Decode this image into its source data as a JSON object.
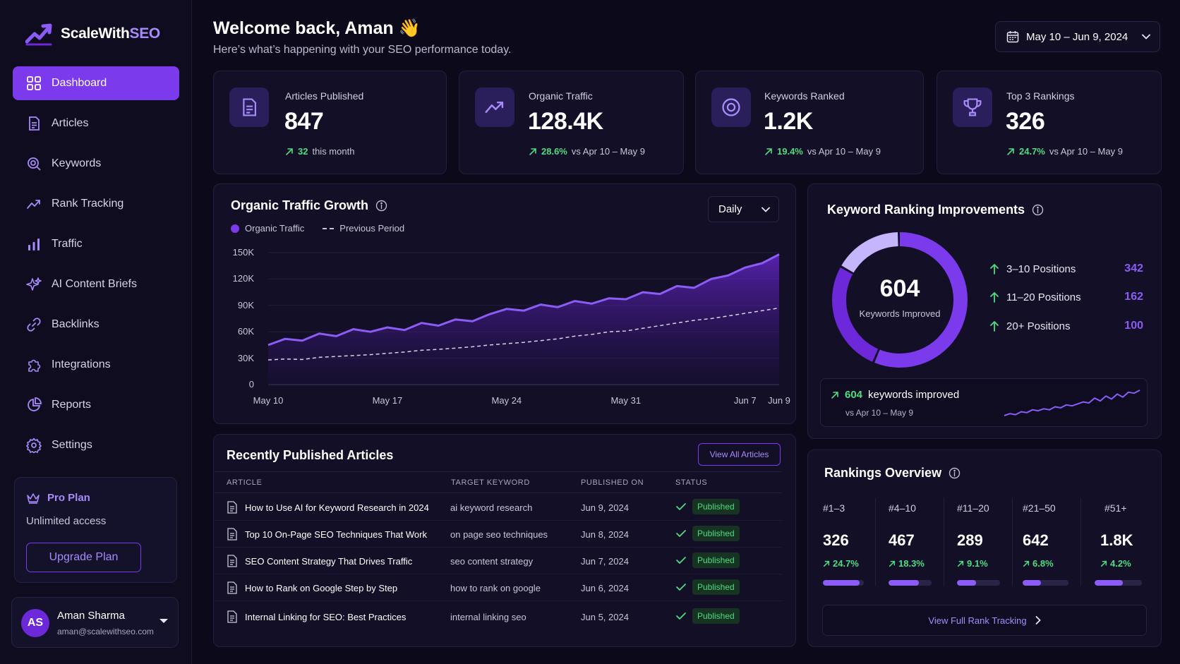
{
  "brand": {
    "name_part1": "ScaleWith",
    "name_part2": "SEO"
  },
  "sidebar": {
    "items": [
      {
        "label": "Dashboard",
        "icon": "grid-icon",
        "active": true
      },
      {
        "label": "Articles",
        "icon": "document-icon"
      },
      {
        "label": "Keywords",
        "icon": "search-icon"
      },
      {
        "label": "Rank Tracking",
        "icon": "trend-icon"
      },
      {
        "label": "Traffic",
        "icon": "bar-chart-icon"
      },
      {
        "label": "AI Content Briefs",
        "icon": "sparkle-icon"
      },
      {
        "label": "Backlinks",
        "icon": "link-icon"
      },
      {
        "label": "Integrations",
        "icon": "puzzle-icon"
      },
      {
        "label": "Reports",
        "icon": "pie-chart-icon"
      },
      {
        "label": "Settings",
        "icon": "gear-icon"
      }
    ],
    "plan": {
      "title": "Pro Plan",
      "subtitle": "Unlimited access",
      "button": "Upgrade Plan"
    },
    "user": {
      "initials": "AS",
      "name": "Aman Sharma",
      "email": "aman@scalewithseo.com"
    }
  },
  "header": {
    "title": "Welcome back, Aman 👋",
    "subtitle": "Here’s what’s happening with your SEO performance today.",
    "date_range": "May 10 – Jun 9, 2024"
  },
  "stats": [
    {
      "label": "Articles Published",
      "value": "847",
      "delta": "32",
      "delta_text": "this month",
      "icon": "document-icon"
    },
    {
      "label": "Organic Traffic",
      "value": "128.4K",
      "delta": "28.6%",
      "delta_text": "vs Apr 10 – May 9",
      "icon": "trend-icon"
    },
    {
      "label": "Keywords Ranked",
      "value": "1.2K",
      "delta": "19.4%",
      "delta_text": "vs Apr 10 – May 9",
      "icon": "target-icon"
    },
    {
      "label": "Top 3 Rankings",
      "value": "326",
      "delta": "24.7%",
      "delta_text": "vs Apr 10 – May 9",
      "icon": "trophy-icon"
    }
  ],
  "traffic": {
    "title": "Organic Traffic Growth",
    "interval": "Daily",
    "legend": {
      "current": "Organic Traffic",
      "previous": "Previous Period"
    }
  },
  "chart_data": {
    "type": "area",
    "ylim": [
      0,
      150000
    ],
    "y_ticks": [
      "150K",
      "120K",
      "90K",
      "60K",
      "30K",
      "0"
    ],
    "x_ticks": [
      "May 10",
      "May 17",
      "May 24",
      "May 31",
      "Jun 7",
      "Jun 9"
    ],
    "x": [
      "May 10",
      "May 11",
      "May 12",
      "May 13",
      "May 14",
      "May 15",
      "May 16",
      "May 17",
      "May 18",
      "May 19",
      "May 20",
      "May 21",
      "May 22",
      "May 23",
      "May 24",
      "May 25",
      "May 26",
      "May 27",
      "May 28",
      "May 29",
      "May 30",
      "May 31",
      "Jun 1",
      "Jun 2",
      "Jun 3",
      "Jun 4",
      "Jun 5",
      "Jun 6",
      "Jun 7",
      "Jun 8",
      "Jun 9"
    ],
    "series": [
      {
        "name": "Organic Traffic",
        "values": [
          45000,
          52000,
          50000,
          58000,
          55000,
          63000,
          60000,
          65000,
          62000,
          70000,
          67000,
          74000,
          72000,
          80000,
          86000,
          84000,
          91000,
          88000,
          95000,
          92000,
          98000,
          97000,
          105000,
          103000,
          112000,
          110000,
          120000,
          124000,
          133000,
          138000,
          148000
        ]
      },
      {
        "name": "Previous Period",
        "values": [
          28000,
          29000,
          28500,
          31000,
          32000,
          33000,
          34000,
          35500,
          37000,
          39000,
          40000,
          41500,
          43000,
          45000,
          46500,
          48000,
          50000,
          52000,
          55000,
          57000,
          60000,
          61000,
          64000,
          67000,
          70000,
          73000,
          75000,
          78000,
          81000,
          84000,
          87000
        ]
      }
    ]
  },
  "keyword_improvements": {
    "title": "Keyword Ranking Improvements",
    "total": "604",
    "total_label": "Keywords Improved",
    "rows": [
      {
        "label": "3–10 Positions",
        "value": 342
      },
      {
        "label": "11–20 Positions",
        "value": 162
      },
      {
        "label": "20+ Positions",
        "value": 100
      }
    ],
    "summary_value": "604",
    "summary_text": "keywords improved",
    "summary_sub": "vs Apr 10 – May 9",
    "sparkline": [
      10,
      12,
      11,
      14,
      13,
      16,
      15,
      17,
      16,
      19,
      18,
      21,
      20,
      22,
      24,
      23,
      28,
      25,
      30,
      27,
      32,
      29,
      34,
      33,
      36
    ]
  },
  "articles": {
    "title": "Recently Published Articles",
    "view_all": "View All Articles",
    "columns": [
      "ARTICLE",
      "TARGET KEYWORD",
      "PUBLISHED ON",
      "STATUS"
    ],
    "rows": [
      {
        "title": "How to Use AI for Keyword Research in 2024",
        "keyword": "ai keyword research",
        "date": "Jun 9, 2024",
        "status": "Published"
      },
      {
        "title": "Top 10 On-Page SEO Techniques That Work",
        "keyword": "on page seo techniques",
        "date": "Jun 8, 2024",
        "status": "Published"
      },
      {
        "title": "SEO Content Strategy That Drives Traffic",
        "keyword": "seo content strategy",
        "date": "Jun 7, 2024",
        "status": "Published"
      },
      {
        "title": "How to Rank on Google Step by Step",
        "keyword": "how to rank on google",
        "date": "Jun 6, 2024",
        "status": "Published"
      },
      {
        "title": "Internal Linking for SEO: Best Practices",
        "keyword": "internal linking seo",
        "date": "Jun 5, 2024",
        "status": "Published"
      }
    ]
  },
  "rankings": {
    "title": "Rankings Overview",
    "buckets": [
      {
        "label": "#1–3",
        "value": "326",
        "change": "24.7%",
        "level": 0.9
      },
      {
        "label": "#4–10",
        "value": "467",
        "change": "18.3%",
        "level": 0.7
      },
      {
        "label": "#11–20",
        "value": "289",
        "change": "9.1%",
        "level": 0.45
      },
      {
        "label": "#21–50",
        "value": "642",
        "change": "6.8%",
        "level": 0.4
      },
      {
        "label": "#51+",
        "value": "1.8K",
        "change": "4.2%",
        "level": 0.6
      }
    ],
    "button": "View Full Rank Tracking"
  },
  "colors": {
    "accent": "#7c3aed",
    "accent_light": "#a78bfa",
    "positive": "#4ade80",
    "background": "#0c0a1a"
  }
}
